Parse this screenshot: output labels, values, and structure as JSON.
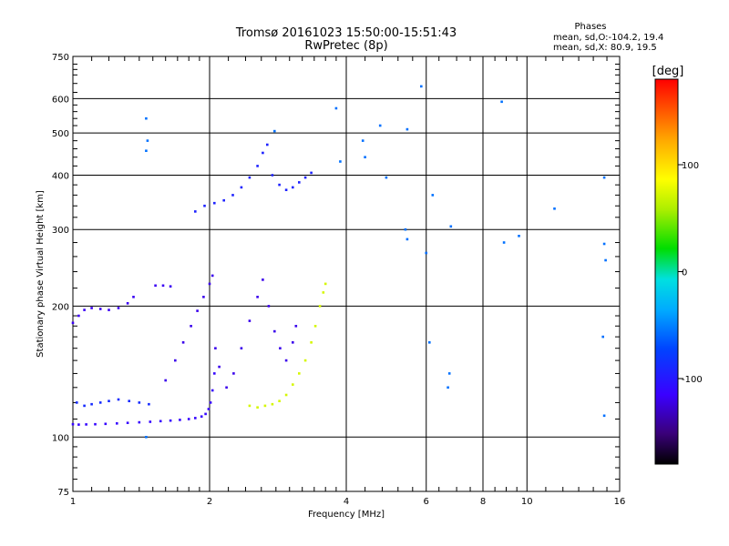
{
  "chart_data": {
    "type": "scatter",
    "title_line1": "Tromsø 20161023 15:50:00-15:51:43",
    "title_line2": "RwPretec (8p)",
    "phase_header": "Phases",
    "phase_stat_O": "mean, sd,O:-104.2, 19.4",
    "phase_stat_X": "mean, sd,X:  80.9, 19.5",
    "xlabel": "Frequency [MHz]",
    "ylabel": "Stationary phase Virtual Height [km]",
    "x_scale": "log",
    "y_scale": "log",
    "xlim": [
      1,
      16
    ],
    "ylim": [
      75,
      750
    ],
    "x_ticks": [
      1,
      2,
      4,
      6,
      8,
      10,
      16
    ],
    "x_tick_labels": [
      "1",
      "2",
      "4",
      "6",
      "8",
      "10",
      "16"
    ],
    "x_grid_major": [
      2,
      4,
      6,
      8,
      10
    ],
    "y_ticks": [
      75,
      100,
      200,
      300,
      400,
      500,
      600,
      750
    ],
    "y_tick_labels": [
      "75",
      "100",
      "200",
      "300",
      "400",
      "500",
      "600",
      "750"
    ],
    "y_grid_major": [
      100,
      200,
      300,
      400,
      500,
      600
    ],
    "grid": true,
    "colorbar": {
      "label": "[deg]",
      "range": [
        -180,
        180
      ],
      "ticks": [
        100,
        0,
        -100
      ],
      "tick_labels": [
        "100",
        "0",
        "-100"
      ]
    },
    "series": [
      {
        "kind": "O-trace-lower-E",
        "points": [
          [
            1.0,
            107
          ],
          [
            1.03,
            106.8
          ],
          [
            1.07,
            106.9
          ],
          [
            1.12,
            107
          ],
          [
            1.18,
            107.2
          ],
          [
            1.25,
            107.5
          ],
          [
            1.32,
            107.8
          ],
          [
            1.4,
            108.1
          ],
          [
            1.48,
            108.4
          ],
          [
            1.56,
            108.8
          ],
          [
            1.64,
            109.1
          ],
          [
            1.72,
            109.5
          ],
          [
            1.8,
            110
          ],
          [
            1.86,
            110.6
          ],
          [
            1.92,
            111.5
          ],
          [
            1.96,
            113
          ],
          [
            1.99,
            116
          ],
          [
            2.01,
            120
          ],
          [
            2.03,
            128
          ],
          [
            2.05,
            140
          ]
        ],
        "phase": -112
      },
      {
        "kind": "O-trace-E-band",
        "points": [
          [
            1.02,
            120
          ],
          [
            1.06,
            118
          ],
          [
            1.1,
            119
          ],
          [
            1.15,
            120
          ],
          [
            1.2,
            121
          ],
          [
            1.26,
            122
          ],
          [
            1.33,
            121
          ],
          [
            1.4,
            120
          ],
          [
            1.47,
            119
          ]
        ],
        "phase": -90
      },
      {
        "kind": "O-trace-Es",
        "points": [
          [
            1.0,
            183
          ],
          [
            1.03,
            190
          ],
          [
            1.06,
            196
          ],
          [
            1.1,
            198
          ],
          [
            1.15,
            197
          ],
          [
            1.2,
            196
          ],
          [
            1.26,
            198
          ],
          [
            1.32,
            203
          ],
          [
            1.36,
            210
          ],
          [
            1.52,
            223
          ],
          [
            1.58,
            223
          ],
          [
            1.64,
            222
          ]
        ],
        "phase": -118
      },
      {
        "kind": "O-trace-F",
        "points": [
          [
            1.6,
            135
          ],
          [
            1.68,
            150
          ],
          [
            1.75,
            165
          ],
          [
            1.82,
            180
          ],
          [
            1.88,
            195
          ],
          [
            1.94,
            210
          ],
          [
            2.0,
            225
          ],
          [
            2.03,
            235
          ],
          [
            2.06,
            160
          ],
          [
            2.1,
            145
          ],
          [
            2.18,
            130
          ],
          [
            2.26,
            140
          ],
          [
            2.35,
            160
          ],
          [
            2.45,
            185
          ],
          [
            2.55,
            210
          ],
          [
            2.62,
            230
          ],
          [
            2.7,
            200
          ],
          [
            2.78,
            175
          ],
          [
            2.86,
            160
          ],
          [
            2.95,
            150
          ],
          [
            3.05,
            165
          ],
          [
            3.1,
            180
          ]
        ],
        "phase": -120
      },
      {
        "kind": "O-trace-F2",
        "points": [
          [
            1.86,
            330
          ],
          [
            1.95,
            340
          ],
          [
            2.05,
            345
          ],
          [
            2.15,
            350
          ],
          [
            2.25,
            360
          ],
          [
            2.35,
            375
          ],
          [
            2.45,
            395
          ],
          [
            2.55,
            420
          ],
          [
            2.62,
            450
          ],
          [
            2.68,
            470
          ],
          [
            2.75,
            400
          ],
          [
            2.85,
            380
          ],
          [
            2.95,
            370
          ],
          [
            3.05,
            375
          ],
          [
            3.15,
            385
          ],
          [
            3.25,
            395
          ],
          [
            3.35,
            405
          ]
        ],
        "phase": -95
      },
      {
        "kind": "X-trace",
        "points": [
          [
            2.45,
            118
          ],
          [
            2.55,
            117
          ],
          [
            2.65,
            118
          ],
          [
            2.75,
            119
          ],
          [
            2.85,
            121
          ],
          [
            2.95,
            125
          ],
          [
            3.05,
            132
          ],
          [
            3.15,
            140
          ],
          [
            3.25,
            150
          ],
          [
            3.35,
            165
          ],
          [
            3.42,
            180
          ],
          [
            3.5,
            200
          ],
          [
            3.56,
            215
          ],
          [
            3.6,
            225
          ]
        ],
        "phase": 70
      },
      {
        "kind": "scattered-points",
        "points": [
          [
            1.45,
            540
          ],
          [
            1.46,
            480
          ],
          [
            1.45,
            455
          ],
          [
            2.78,
            505
          ],
          [
            3.8,
            570
          ],
          [
            4.75,
            520
          ],
          [
            5.45,
            510
          ],
          [
            5.85,
            640
          ],
          [
            8.8,
            590
          ],
          [
            4.35,
            480
          ],
          [
            3.88,
            430
          ],
          [
            4.4,
            440
          ],
          [
            4.9,
            395
          ],
          [
            5.4,
            300
          ],
          [
            5.45,
            285
          ],
          [
            6.2,
            360
          ],
          [
            6.8,
            305
          ],
          [
            6.0,
            265
          ],
          [
            8.9,
            280
          ],
          [
            9.6,
            290
          ],
          [
            11.5,
            335
          ],
          [
            14.8,
            395
          ],
          [
            14.8,
            278
          ],
          [
            14.9,
            255
          ],
          [
            6.1,
            165
          ],
          [
            6.75,
            140
          ],
          [
            6.7,
            130
          ],
          [
            14.7,
            170
          ],
          [
            14.8,
            112
          ],
          [
            1.45,
            100
          ]
        ],
        "phase": -60
      }
    ]
  }
}
